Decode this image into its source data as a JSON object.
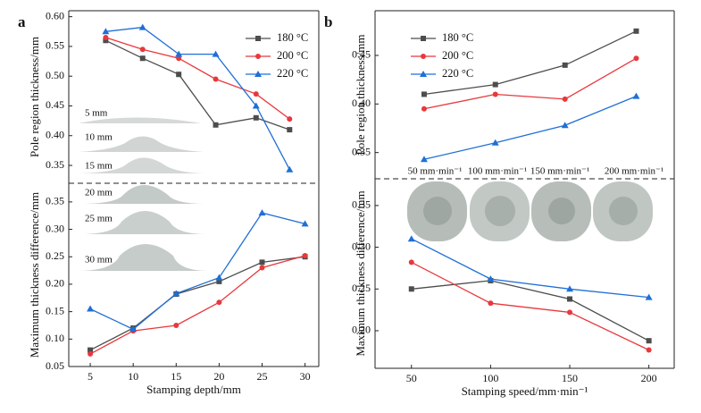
{
  "chart_data": [
    {
      "type": "line",
      "panel_label": "a",
      "y_label": "Pole region thickness/mm",
      "legend": "upper right",
      "x": [
        6.8,
        11.1,
        15.3,
        19.6,
        24.3,
        28.2
      ],
      "xlim": [
        2.5,
        31.6
      ],
      "ylim": [
        0.32,
        0.61
      ],
      "yticks": [
        0.35,
        {
          "value": 0.4,
          "label": "0.40"
        },
        0.45,
        {
          "value": 0.5,
          "label": "0.50"
        },
        0.55,
        {
          "value": 0.6,
          "label": "0.60"
        }
      ],
      "annotations": [
        "5 mm",
        "10 mm",
        "15 mm"
      ],
      "series": [
        {
          "name": "180 °C",
          "color": "#4d4d4d",
          "marker": "square",
          "values": [
            0.56,
            0.53,
            0.503,
            0.418,
            0.43,
            0.41
          ]
        },
        {
          "name": "200 °C",
          "color": "#e8383d",
          "marker": "circle",
          "values": [
            0.565,
            0.545,
            0.53,
            0.495,
            0.47,
            0.428
          ]
        },
        {
          "name": "220 °C",
          "color": "#1f6fd6",
          "marker": "triangle",
          "values": [
            0.575,
            0.582,
            0.537,
            0.537,
            0.45,
            0.343
          ]
        }
      ]
    },
    {
      "type": "line",
      "y_label": "Maximum thickness difference/mm",
      "x_label": "Stamping depth/mm",
      "x": [
        5,
        10,
        15,
        20,
        25,
        30
      ],
      "xlim": [
        2.5,
        31.6
      ],
      "xticks": [
        5,
        10,
        15,
        20,
        25,
        30
      ],
      "ylim": [
        0.05,
        0.384
      ],
      "yticks": [
        0.05,
        {
          "value": 0.1,
          "label": "0.10"
        },
        0.15,
        {
          "value": 0.2,
          "label": "0.20"
        },
        0.25,
        {
          "value": 0.3,
          "label": "0.30"
        },
        0.35
      ],
      "annotations": [
        "20 mm",
        "25 mm",
        "30 mm"
      ],
      "series": [
        {
          "color": "#4d4d4d",
          "marker": "square",
          "values": [
            0.08,
            0.12,
            0.182,
            0.205,
            0.24,
            0.25
          ]
        },
        {
          "color": "#e8383d",
          "marker": "circle",
          "values": [
            0.073,
            0.115,
            0.125,
            0.167,
            0.23,
            0.252
          ]
        },
        {
          "color": "#1f6fd6",
          "marker": "triangle",
          "values": [
            0.155,
            0.118,
            0.183,
            0.212,
            0.33,
            0.31
          ]
        }
      ]
    },
    {
      "type": "line",
      "panel_label": "b",
      "y_label": "Pole region thickness/mm",
      "legend": "upper left",
      "x": [
        58,
        103,
        147,
        192
      ],
      "xlim": [
        27,
        216
      ],
      "ylim": [
        0.323,
        0.496
      ],
      "yticks": [
        0.35,
        {
          "value": 0.4,
          "label": "0.40"
        },
        0.45
      ],
      "annotations": [
        "50 mm·min⁻¹",
        "100 mm·min⁻¹",
        "150 mm·min⁻¹",
        "200 mm·min⁻¹"
      ],
      "series": [
        {
          "name": "180 °C",
          "color": "#4d4d4d",
          "marker": "square",
          "values": [
            0.41,
            0.42,
            0.44,
            0.475
          ]
        },
        {
          "name": "200 °C",
          "color": "#e8383d",
          "marker": "circle",
          "values": [
            0.395,
            0.41,
            0.405,
            0.447
          ]
        },
        {
          "name": "220 °C",
          "color": "#1f6fd6",
          "marker": "triangle",
          "values": [
            0.343,
            0.36,
            0.378,
            0.408
          ]
        }
      ]
    },
    {
      "type": "line",
      "y_label": "Maximum thickness difference/mm",
      "x_label": "Stamping speed/mm·min⁻¹",
      "x": [
        50,
        100,
        150,
        200
      ],
      "xlim": [
        27,
        216
      ],
      "xticks": [
        50,
        100,
        150,
        200
      ],
      "ylim": [
        0.155,
        0.382
      ],
      "yticks": [
        {
          "value": 0.2,
          "label": "0.20"
        },
        0.25,
        {
          "value": 0.3,
          "label": "0.30"
        },
        0.35
      ],
      "series": [
        {
          "color": "#4d4d4d",
          "marker": "square",
          "values": [
            0.25,
            0.26,
            0.238,
            0.188
          ]
        },
        {
          "color": "#e8383d",
          "marker": "circle",
          "values": [
            0.282,
            0.233,
            0.222,
            0.177
          ]
        },
        {
          "color": "#1f6fd6",
          "marker": "triangle",
          "values": [
            0.31,
            0.262,
            0.25,
            0.24
          ]
        }
      ]
    }
  ]
}
